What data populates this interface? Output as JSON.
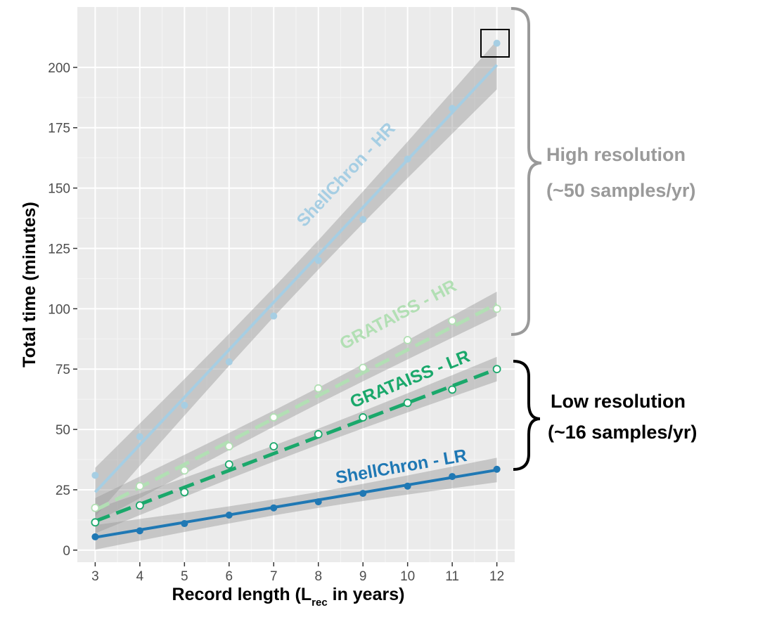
{
  "chart_data": {
    "type": "scatter",
    "xlabel": {
      "main": "Record length (L",
      "sub": "rec",
      "tail": " in years)"
    },
    "ylabel": "Total time (minutes)",
    "xlim": [
      2.6,
      12.4
    ],
    "ylim": [
      -5,
      225
    ],
    "x_ticks": [
      3,
      4,
      5,
      6,
      7,
      8,
      9,
      10,
      11,
      12
    ],
    "y_ticks": [
      0,
      25,
      50,
      75,
      100,
      125,
      150,
      175,
      200
    ],
    "grid": true,
    "x": [
      3,
      4,
      5,
      6,
      7,
      8,
      9,
      10,
      11,
      12
    ],
    "series": [
      {
        "name": "ShellChron - HR",
        "color": "#a6cee3",
        "marker": "filled",
        "line": "solid",
        "values": [
          31,
          47,
          60,
          78,
          97,
          120,
          137,
          162,
          183,
          210
        ],
        "fit": [
          24,
          43.7,
          63.3,
          83,
          102.7,
          122.3,
          142,
          161.7,
          181.3,
          201
        ]
      },
      {
        "name": "GRATAISS - HR",
        "color": "#b2dfb4",
        "marker": "open",
        "line": "dashed",
        "values": [
          17.5,
          26.5,
          33,
          43,
          55,
          67,
          75.5,
          87,
          95,
          100
        ],
        "fit": [
          16.5,
          26,
          35.5,
          45,
          54.5,
          64,
          73.5,
          83,
          92.5,
          102
        ]
      },
      {
        "name": "GRATAISS - LR",
        "color": "#1aa86b",
        "marker": "open",
        "line": "dashed",
        "values": [
          11.5,
          18.5,
          24,
          35.5,
          43,
          48,
          55,
          61,
          66.5,
          75
        ],
        "fit": [
          12,
          19,
          26,
          33,
          40,
          47,
          54,
          61,
          68,
          75
        ]
      },
      {
        "name": "ShellChron - LR",
        "color": "#1f78b4",
        "marker": "filled",
        "line": "solid",
        "values": [
          5.5,
          8,
          11,
          14.5,
          17.5,
          20,
          23.5,
          26.5,
          30.5,
          33.5
        ],
        "fit": [
          5.3,
          8.4,
          11.5,
          14.6,
          17.7,
          20.8,
          23.9,
          27,
          30.1,
          33.2
        ]
      }
    ],
    "highlighted_point": {
      "series": "ShellChron - HR",
      "x": 12,
      "y": 210
    },
    "groups": [
      {
        "label_line1": "High resolution",
        "label_line2": "(~50 samples/yr)",
        "range": [
          90,
          225
        ],
        "color": "#9a9a9a"
      },
      {
        "label_line1": "Low resolution",
        "label_line2": "(~16 samples/yr)",
        "range": [
          33,
          78
        ],
        "color": "#000000"
      }
    ]
  }
}
